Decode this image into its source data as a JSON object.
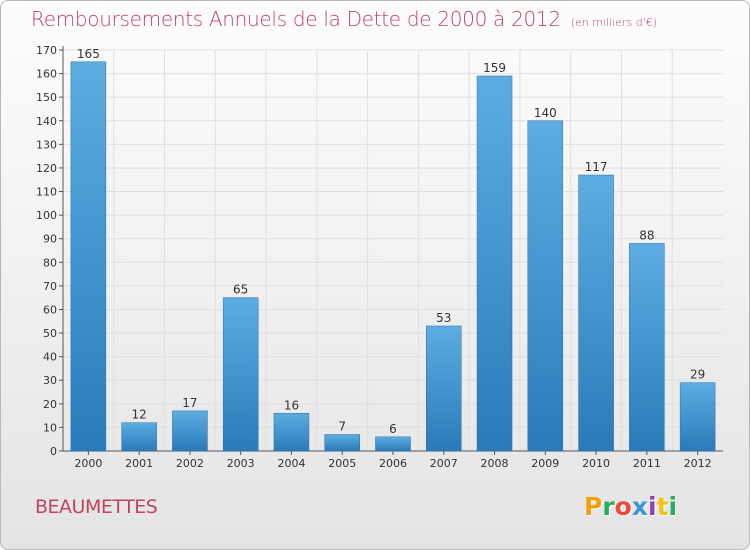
{
  "header": {
    "title": "Remboursements Annuels de la Dette de 2000 à 2012",
    "unit": "(en milliers d'€)"
  },
  "footer": {
    "place": "BEAUMETTES",
    "logo_text": "Proxiti",
    "logo_colors": [
      "#f39c12",
      "#27ae60",
      "#e74c3c",
      "#3498db",
      "#8e44ad",
      "#f1c40f",
      "#27ae60"
    ]
  },
  "colors": {
    "bar_top": "#5dade2",
    "bar_bottom": "#2a7ab9",
    "title": "#c0455c",
    "grid": "#e0e0e0"
  },
  "chart_data": {
    "type": "bar",
    "title": "Remboursements Annuels de la Dette de 2000 à 2012",
    "categories": [
      "2000",
      "2001",
      "2002",
      "2003",
      "2004",
      "2005",
      "2006",
      "2007",
      "2008",
      "2009",
      "2010",
      "2011",
      "2012"
    ],
    "values": [
      165,
      12,
      17,
      65,
      16,
      7,
      6,
      53,
      159,
      140,
      117,
      88,
      29
    ],
    "ylim": [
      0,
      170
    ],
    "yticks": [
      0,
      10,
      20,
      30,
      40,
      50,
      60,
      70,
      80,
      90,
      100,
      110,
      120,
      130,
      140,
      150,
      160,
      170
    ],
    "grid": true,
    "legend": "none"
  }
}
